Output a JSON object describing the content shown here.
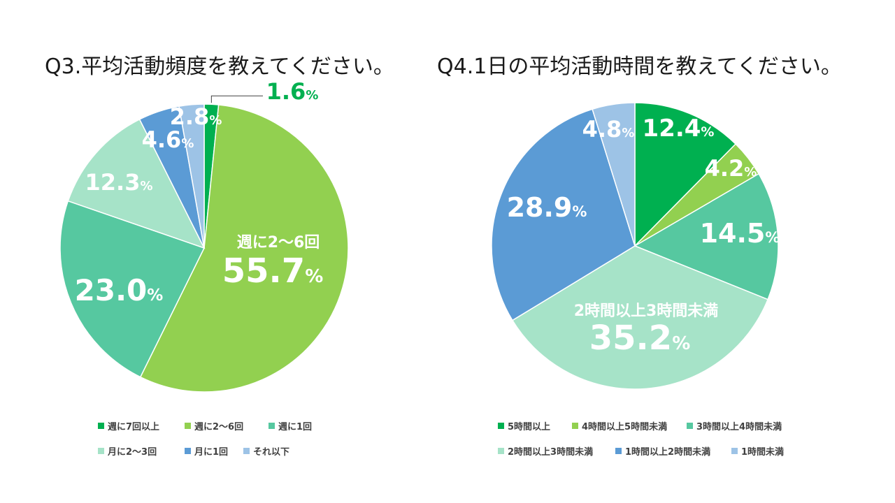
{
  "chart_data": [
    {
      "type": "pie",
      "title": "Q3.平均活動頻度を教えてください。",
      "percent_sign": "%",
      "slices": [
        {
          "name": "週に7回以上",
          "value": 1.6,
          "label": "1.6",
          "color": "#00b050"
        },
        {
          "name": "週に2〜6回",
          "value": 55.7,
          "label": "55.7",
          "inner_label": "週に2〜6回",
          "color": "#92d050"
        },
        {
          "name": "週に1回",
          "value": 23.0,
          "label": "23.0",
          "color": "#56c8a0"
        },
        {
          "name": "月に2〜3回",
          "value": 12.3,
          "label": "12.3",
          "color": "#a6e3c8"
        },
        {
          "name": "月に1回",
          "value": 4.6,
          "label": "4.6",
          "color": "#5b9bd5"
        },
        {
          "name": "それ以下",
          "value": 2.8,
          "label": "2.8",
          "color": "#9dc3e6"
        }
      ],
      "legend": [
        "週に7回以上",
        "週に2〜6回",
        "週に1回",
        "月に2〜3回",
        "月に1回",
        "それ以下"
      ]
    },
    {
      "type": "pie",
      "title": "Q4.1日の平均活動時間を教えてください。",
      "percent_sign": "%",
      "slices": [
        {
          "name": "5時間以上",
          "value": 12.4,
          "label": "12.4",
          "color": "#00b050"
        },
        {
          "name": "4時間以上5時間未満",
          "value": 4.2,
          "label": "4.2",
          "color": "#92d050"
        },
        {
          "name": "3時間以上4時間未満",
          "value": 14.5,
          "label": "14.5",
          "color": "#56c8a0"
        },
        {
          "name": "2時間以上3時間未満",
          "value": 35.2,
          "label": "35.2",
          "inner_label": "2時間以上3時間未満",
          "color": "#a6e3c8"
        },
        {
          "name": "1時間以上2時間未満",
          "value": 28.9,
          "label": "28.9",
          "color": "#5b9bd5"
        },
        {
          "name": "1時間未満",
          "value": 4.8,
          "label": "4.8",
          "color": "#9dc3e6"
        }
      ],
      "legend": [
        "5時間以上",
        "4時間以上5時間未満",
        "3時間以上4時間未満",
        "2時間以上3時間未満",
        "1時間以上2時間未満",
        "1時間未満"
      ]
    }
  ]
}
